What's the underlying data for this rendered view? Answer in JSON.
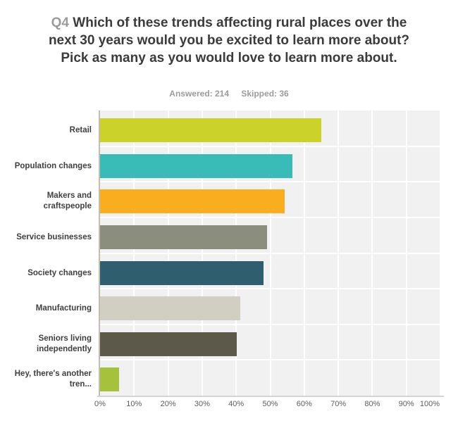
{
  "header": {
    "question_number": "Q4",
    "title": "Which of these trends affecting rural places over the next 30 years would you be excited to learn more about? Pick as many as you would love to learn more about.",
    "answered": "Answered: 214",
    "skipped": "Skipped: 36"
  },
  "chart_data": {
    "type": "bar",
    "orientation": "horizontal",
    "categories": [
      "Retail",
      "Population changes",
      "Makers and craftspeople",
      "Service businesses",
      "Society changes",
      "Manufacturing",
      "Seniors living independently",
      "Hey, there's another tren..."
    ],
    "values": [
      64.95,
      56.54,
      54.21,
      49.07,
      48.13,
      41.12,
      40.19,
      5.61
    ],
    "bar_colors": [
      "#cbd32b",
      "#39bcb8",
      "#f8ae1f",
      "#8b8d7d",
      "#2f5f6e",
      "#d1cfc2",
      "#5c594b",
      "#a6c23c"
    ],
    "x_tick_labels": [
      "0%",
      "10%",
      "20%",
      "30%",
      "40%",
      "50%",
      "60%",
      "70%",
      "80%",
      "90%",
      "100%"
    ],
    "xlim": [
      0,
      100
    ],
    "grid": true,
    "plot_background": "#f1f1f1",
    "gridline_color": "#ffffff",
    "legend": "none",
    "title": "Q4 Which of these trends affecting rural places over the next 30 years would you be excited to learn more about? Pick as many as you would love to learn more about."
  }
}
